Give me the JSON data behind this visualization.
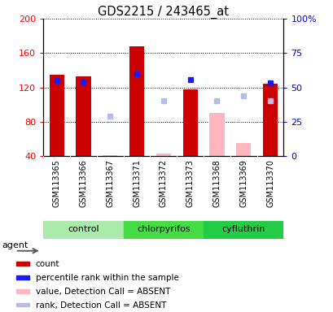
{
  "title": "GDS2215 / 243465_at",
  "samples": [
    "GSM113365",
    "GSM113366",
    "GSM113367",
    "GSM113371",
    "GSM113372",
    "GSM113373",
    "GSM113368",
    "GSM113369",
    "GSM113370"
  ],
  "bar_color_present": "#cc0000",
  "bar_color_absent": "#ffb6c1",
  "dot_color_present": "#1a1aff",
  "dot_color_absent": "#b8bce8",
  "ylim_left": [
    40,
    200
  ],
  "ylim_right": [
    0,
    100
  ],
  "yticks_left": [
    40,
    80,
    120,
    160,
    200
  ],
  "yticks_right": [
    0,
    25,
    50,
    75,
    100
  ],
  "count_values": [
    135,
    133,
    null,
    168,
    null,
    118,
    null,
    null,
    124
  ],
  "count_absent_values": [
    null,
    null,
    41,
    null,
    43,
    null,
    90,
    55,
    null
  ],
  "rank_values": [
    128,
    126,
    null,
    136,
    null,
    129,
    null,
    null,
    125
  ],
  "rank_absent_values": [
    null,
    null,
    86,
    null,
    104,
    null,
    104,
    110,
    104
  ],
  "legend_items": [
    {
      "label": "count",
      "color": "#cc0000"
    },
    {
      "label": "percentile rank within the sample",
      "color": "#1a1aff"
    },
    {
      "label": "value, Detection Call = ABSENT",
      "color": "#ffb6c1"
    },
    {
      "label": "rank, Detection Call = ABSENT",
      "color": "#b8bce8"
    }
  ],
  "groups_def": [
    {
      "start": 0,
      "end": 2,
      "name": "control",
      "color": "#aaeaaa"
    },
    {
      "start": 3,
      "end": 5,
      "name": "chlorpyrifos",
      "color": "#44dd44"
    },
    {
      "start": 6,
      "end": 8,
      "name": "cyfluthrin",
      "color": "#22cc44"
    }
  ],
  "sample_area_color": "#cccccc",
  "group_area_color": "#aaeaaa"
}
